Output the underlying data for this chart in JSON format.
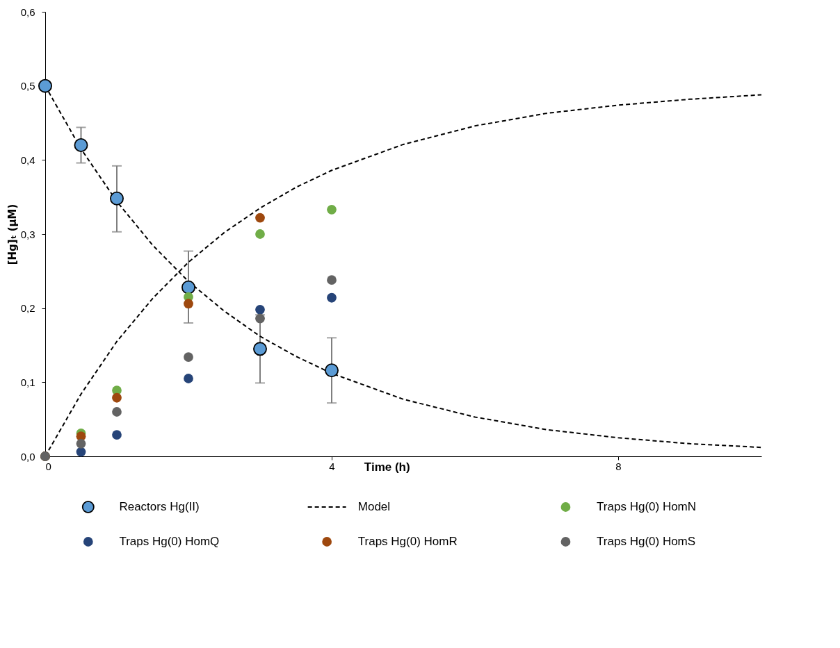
{
  "chart_data": {
    "type": "scatter",
    "xlabel": "Time (h)",
    "ylabel": "[Hg]ₜ (µM)",
    "xlim": [
      0,
      10
    ],
    "xticks": [
      0,
      4,
      8
    ],
    "ylim": [
      0,
      0.6
    ],
    "yticks": [
      {
        "value": 0,
        "label": "0,0"
      },
      {
        "value": 0.1,
        "label": "0,1"
      },
      {
        "value": 0.2,
        "label": "0,2"
      },
      {
        "value": 0.3,
        "label": "0,3"
      },
      {
        "value": 0.4,
        "label": "0,4"
      },
      {
        "value": 0.5,
        "label": "0,5"
      },
      {
        "value": 0.6,
        "label": "0,6"
      }
    ],
    "grid": false,
    "legend": "bottom",
    "marker": "circle",
    "x": [
      0,
      0.5,
      1,
      2,
      3,
      4
    ],
    "series": [
      {
        "name": "Reactors Hg(II)",
        "color": "#5b9bd5",
        "values": [
          0.5,
          0.42,
          0.348,
          0.228,
          0.145,
          0.116
        ],
        "errors": [
          null,
          [
            0.396,
            0.444
          ],
          [
            0.303,
            0.392
          ],
          [
            0.18,
            0.277
          ],
          0.046,
          [
            0.072,
            0.16
          ]
        ]
      },
      {
        "name": "Model",
        "type": "line",
        "line_style": "dashed",
        "marker": "none",
        "color": "#000000",
        "x": [
          0,
          0.5,
          1,
          1.5,
          2,
          2.5,
          3,
          3.5,
          4,
          5,
          6,
          7,
          8,
          9,
          10
        ],
        "values": [
          0.5,
          0.415,
          0.344,
          0.285,
          0.236,
          0.196,
          0.162,
          0.135,
          0.112,
          0.077,
          0.053,
          0.036,
          0.025,
          0.017,
          0.012
        ]
      },
      {
        "type": "line",
        "line_style": "dashed",
        "marker": "none",
        "color": "#000000",
        "x": [
          0,
          0.5,
          1,
          1.5,
          2,
          2.5,
          3,
          3.5,
          4,
          5,
          6,
          7,
          8,
          9,
          10
        ],
        "values": [
          0,
          0.084,
          0.155,
          0.213,
          0.262,
          0.302,
          0.335,
          0.363,
          0.386,
          0.421,
          0.446,
          0.463,
          0.474,
          0.482,
          0.488
        ]
      },
      {
        "name": "Traps Hg(0) HomN",
        "color": "#70ad47",
        "values": [
          0,
          0.031,
          0.089,
          0.215,
          0.3,
          0.333
        ]
      },
      {
        "name": "Traps Hg(0) HomQ",
        "color": "#264478",
        "values": [
          0,
          0.006,
          0.029,
          0.105,
          0.198,
          0.214
        ]
      },
      {
        "name": "Traps Hg(0) HomR",
        "color": "#9e480e",
        "values": [
          0,
          0.027,
          0.079,
          0.206,
          0.322,
          null
        ]
      },
      {
        "name": "Traps Hg(0) HomS",
        "color": "#636363",
        "values": [
          0,
          0.017,
          0.06,
          0.134,
          0.186,
          0.238
        ]
      }
    ]
  }
}
